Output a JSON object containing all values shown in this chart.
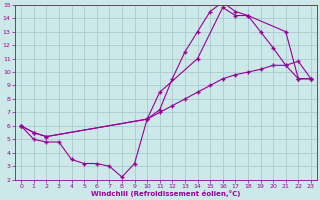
{
  "background_color": "#cce8e8",
  "grid_color": "#aacccc",
  "line_color": "#990099",
  "xlabel": "Windchill (Refroidissement éolien,°C)",
  "xlim": [
    -0.5,
    23.5
  ],
  "ylim": [
    2,
    15
  ],
  "yticks": [
    2,
    3,
    4,
    5,
    6,
    7,
    8,
    9,
    10,
    11,
    12,
    13,
    14,
    15
  ],
  "xticks": [
    0,
    1,
    2,
    3,
    4,
    5,
    6,
    7,
    8,
    9,
    10,
    11,
    12,
    13,
    14,
    15,
    16,
    17,
    18,
    19,
    20,
    21,
    22,
    23
  ],
  "line1_x": [
    0,
    1,
    2,
    3,
    4,
    5,
    6,
    7,
    8,
    9,
    10,
    11,
    12,
    13,
    14,
    15,
    16,
    17,
    18,
    19,
    20,
    21,
    22,
    23
  ],
  "line1_y": [
    6,
    5,
    4.8,
    4.8,
    3.5,
    3.2,
    3.2,
    3.0,
    2.2,
    3.2,
    6.5,
    7.2,
    9.5,
    11.5,
    13.0,
    14.5,
    15.2,
    14.5,
    14.2,
    13.0,
    11.8,
    10.5,
    9.5,
    9.5
  ],
  "line2_x": [
    0,
    1,
    2,
    10,
    11,
    12,
    13,
    14,
    15,
    16,
    17,
    18,
    19,
    20,
    21,
    22,
    23
  ],
  "line2_y": [
    6,
    5.5,
    5.2,
    6.5,
    7.0,
    7.5,
    8.0,
    8.5,
    9.0,
    9.5,
    9.8,
    10.0,
    10.2,
    10.5,
    10.5,
    10.8,
    9.5
  ],
  "line3_x": [
    0,
    1,
    2,
    10,
    11,
    14,
    16,
    17,
    18,
    21,
    22,
    23
  ],
  "line3_y": [
    6,
    5.5,
    5.2,
    6.5,
    8.5,
    11.0,
    14.8,
    14.2,
    14.2,
    13.0,
    9.5,
    9.5
  ]
}
